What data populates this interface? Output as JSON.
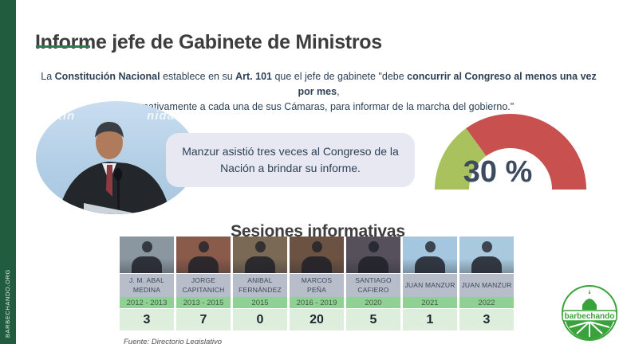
{
  "sidebar": {
    "label": "BARBECHANDO.ORG",
    "color": "#215c3e"
  },
  "header": {
    "title": "Informe jefe de Gabinete de Ministros",
    "underline_color": "#2e7d52"
  },
  "intro": {
    "line1": [
      {
        "text": "La ",
        "bold": false
      },
      {
        "text": "Constitución Nacional",
        "bold": true
      },
      {
        "text": " establece en su ",
        "bold": false
      },
      {
        "text": "Art. 101",
        "bold": true
      },
      {
        "text": " que el jefe de gabinete \"debe ",
        "bold": false
      },
      {
        "text": "concurrir al Congreso al menos una vez por mes",
        "bold": true
      },
      {
        "text": ",",
        "bold": false
      }
    ],
    "line2": "alternativamente a cada una de sus Cámaras, para informar de la marcha del gobierno.\""
  },
  "hero": {
    "photo_backdrop_fragments": [
      "tin",
      "nida"
    ],
    "bubble_text": "Manzur asistió tres veces al Congreso de la Nación a brindar su informe."
  },
  "chart_data": [
    {
      "type": "pie",
      "subtype": "half-donut-gauge",
      "label": "30 %",
      "value_percent": 30,
      "label_color": "#3d4b5f",
      "segments": [
        {
          "name": "porcentaje-cumplido",
          "value": 30,
          "color": "#a9c25d"
        },
        {
          "name": "resto",
          "value": 70,
          "color": "#c8504f"
        }
      ]
    },
    {
      "type": "table",
      "title": "Sesiones informativas",
      "source": "Fuente: Directorio Legislativo",
      "rows": [
        {
          "name": "J. M. ABAL MEDINA",
          "period": "2012 - 2013",
          "count": 3,
          "photo_bg": "#8a97a0"
        },
        {
          "name": "JORGE CAPITANICH",
          "period": "2013 - 2015",
          "count": 7,
          "photo_bg": "#8a5a4a"
        },
        {
          "name": "ANIBAL FERNÁNDEZ",
          "period": "2015",
          "count": 0,
          "photo_bg": "#7a6a55"
        },
        {
          "name": "MARCOS PEÑA",
          "period": "2016 - 2019",
          "count": 20,
          "photo_bg": "#6b5242"
        },
        {
          "name": "SANTIAGO CAFIERO",
          "period": "2020",
          "count": 5,
          "photo_bg": "#55505a"
        },
        {
          "name": "JUAN MANZUR",
          "period": "2021",
          "count": 1,
          "photo_bg": "#a4c6de"
        },
        {
          "name": "JUAN MANZUR",
          "period": "2022",
          "count": 3,
          "photo_bg": "#a9cade"
        }
      ]
    }
  ],
  "logo": {
    "text": "barbechando",
    "color": "#3aa23a"
  }
}
